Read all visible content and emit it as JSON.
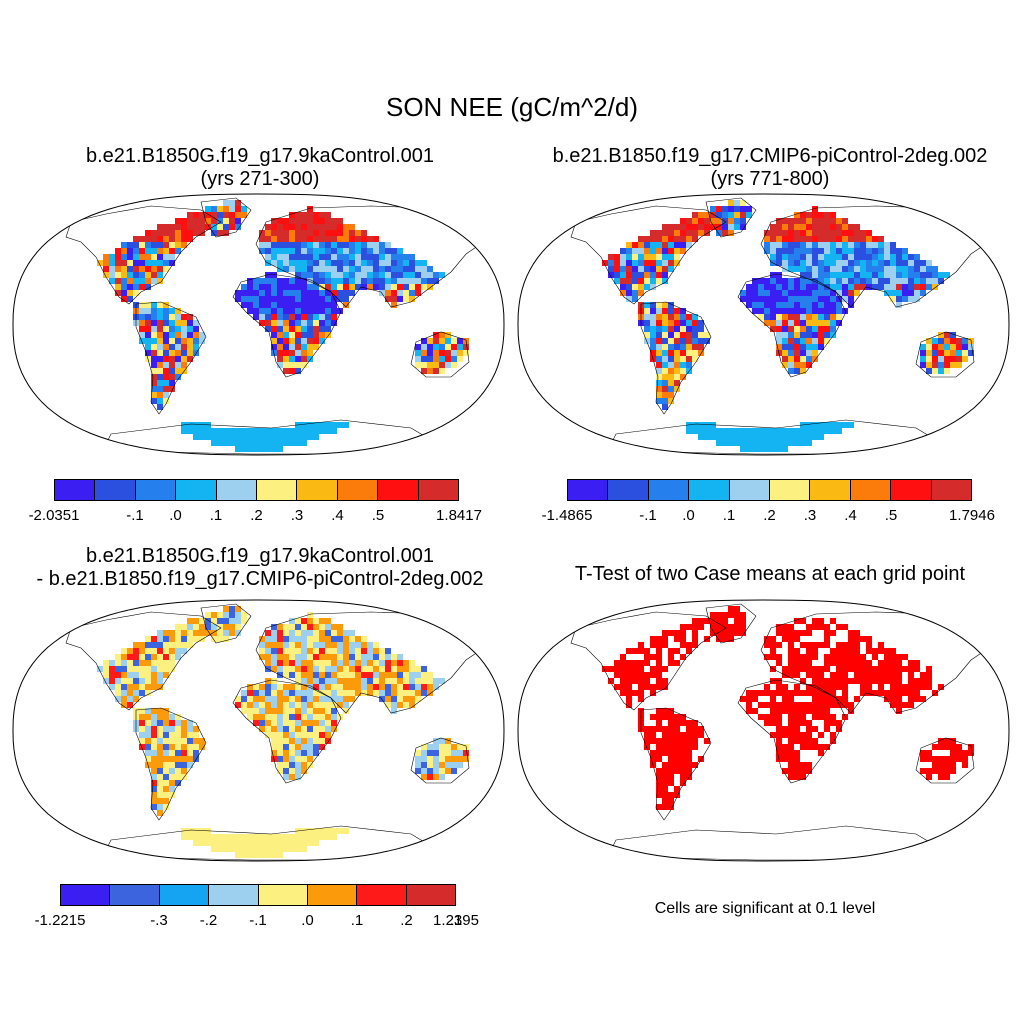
{
  "figure": {
    "title": "SON NEE (gC/m^2/d)"
  },
  "panels": [
    {
      "id": "case1",
      "title_line1": "b.e21.B1850G.f19_g17.9kaControl.001",
      "title_line2": "(yrs 271-300)",
      "colorbar": {
        "colors": [
          "#3b1ff2",
          "#2b50e0",
          "#2580ee",
          "#14b4f2",
          "#9dd0ee",
          "#fcf081",
          "#fbb914",
          "#fb7c0a",
          "#ff0f0f",
          "#d52b2b"
        ],
        "labels": [
          "-2.0351",
          "-.1",
          ".0",
          ".1",
          ".2",
          ".3",
          ".4",
          ".5",
          "1.8417"
        ]
      }
    },
    {
      "id": "case2",
      "title_line1": "b.e21.B1850.f19_g17.CMIP6-piControl-2deg.002",
      "title_line2": "(yrs 771-800)",
      "colorbar": {
        "colors": [
          "#3b1ff2",
          "#2b50e0",
          "#2580ee",
          "#14b4f2",
          "#9dd0ee",
          "#fcf081",
          "#fbb914",
          "#fb7c0a",
          "#ff0f0f",
          "#d52b2b"
        ],
        "labels": [
          "-1.4865",
          "-.1",
          ".0",
          ".1",
          ".2",
          ".3",
          ".4",
          ".5",
          "1.7946"
        ]
      }
    },
    {
      "id": "diff",
      "title_line1": "b.e21.B1850G.f19_g17.9kaControl.001",
      "title_line2": "- b.e21.B1850.f19_g17.CMIP6-piControl-2deg.002",
      "colorbar": {
        "colors": [
          "#3b1ff2",
          "#3c64de",
          "#14a4f2",
          "#9dd0ee",
          "#fcf081",
          "#fb9a0a",
          "#ff1a1a",
          "#d52b2b"
        ],
        "labels": [
          "-1.2215",
          "-.3",
          "-.2",
          "-.1",
          ".0",
          ".1",
          ".2",
          ".3",
          "1.2195"
        ]
      }
    },
    {
      "id": "ttest",
      "title_line1": "T-Test of two Case means at each grid point",
      "note": "Cells are significant at 0.1 level",
      "sig_color": "#ff0000"
    }
  ]
}
